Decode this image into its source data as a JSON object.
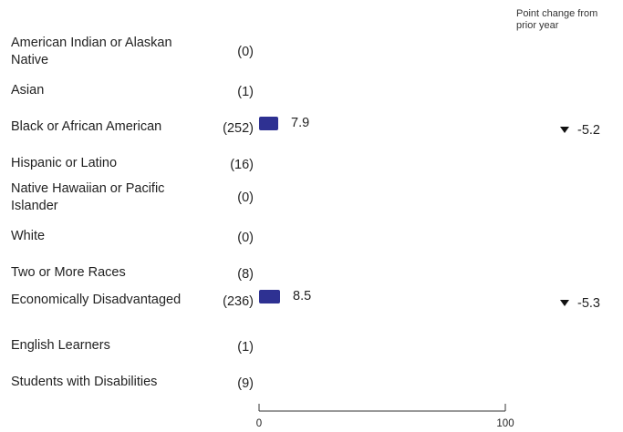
{
  "header_note": "Point change from prior year",
  "colors": {
    "bar": "#2e3192",
    "change_marker": "#111111"
  },
  "chart_data": {
    "type": "bar",
    "orientation": "horizontal",
    "categories": [
      "American Indian or Alaskan Native",
      "Asian",
      "Black or African American",
      "Hispanic or Latino",
      "Native Hawaiian or Pacific Islander",
      "White",
      "Two or More Races",
      "Economically Disadvantaged",
      "English Learners",
      "Students with Disabilities"
    ],
    "counts": [
      "(0)",
      "(1)",
      "(252)",
      "(16)",
      "(0)",
      "(0)",
      "(8)",
      "(236)",
      "(1)",
      "(9)"
    ],
    "values": [
      null,
      null,
      7.9,
      null,
      null,
      null,
      null,
      8.5,
      null,
      null
    ],
    "point_change": [
      null,
      null,
      "-5.2",
      null,
      null,
      null,
      null,
      "-5.3",
      null,
      null
    ],
    "xlim": [
      0,
      100
    ],
    "x_ticks": [
      "0",
      "100"
    ]
  }
}
